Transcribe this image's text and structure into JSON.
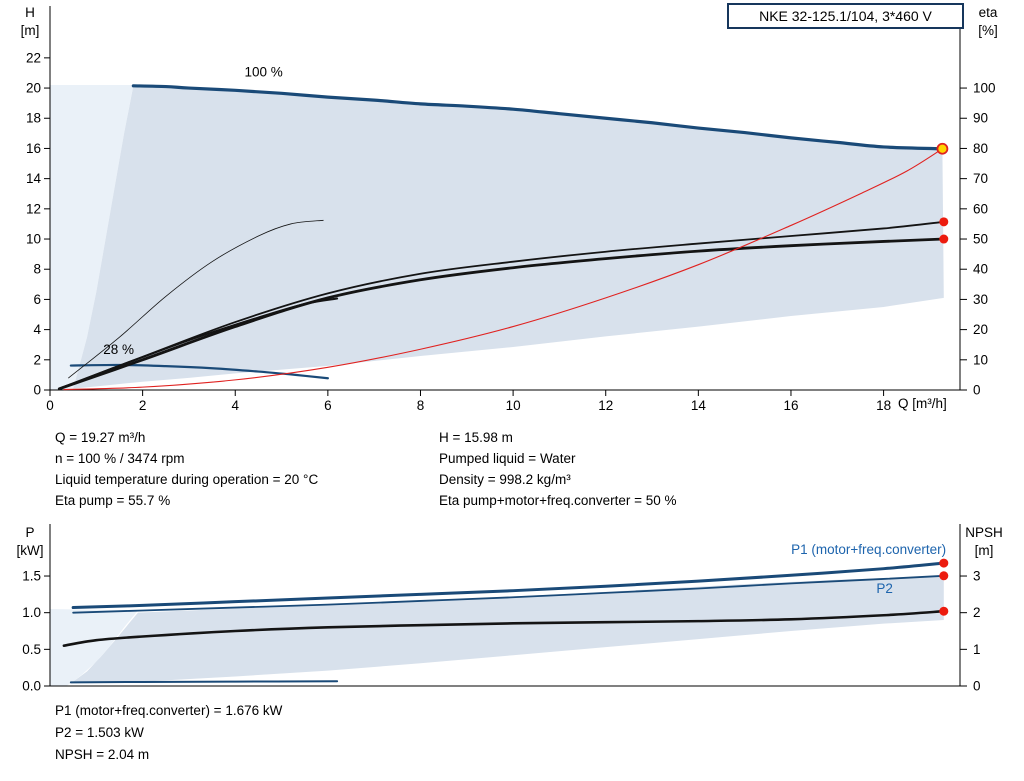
{
  "title_box": {
    "label": "NKE 32-125.1/104, 3*460 V"
  },
  "info_top": {
    "col1": [
      "Q = 19.27 m³/h",
      "n = 100 % / 3474 rpm",
      "Liquid temperature during operation = 20 °C",
      "Eta pump = 55.7 %"
    ],
    "col2": [
      "H = 15.98 m",
      "Pumped liquid = Water",
      "Density = 998.2 kg/m³",
      "Eta pump+motor+freq.converter = 50 %"
    ]
  },
  "info_bottom": [
    "P1 (motor+freq.converter) = 1.676 kW",
    "P2 = 1.503 kW",
    "NPSH = 2.04 m"
  ],
  "chart_data": [
    {
      "type": "line",
      "title": "QH performance curve with efficiency",
      "x_axis": {
        "label": "Q [m³/h]",
        "min": 0,
        "max": 19.65,
        "ticks": [
          0,
          2,
          4,
          6,
          8,
          10,
          12,
          14,
          16,
          18
        ],
        "show_tick_labels": true
      },
      "y_left": {
        "name": "H",
        "unit": "[m]",
        "min": 0,
        "max": 25.17,
        "ticks": [
          0,
          2,
          4,
          6,
          8,
          10,
          12,
          14,
          16,
          18,
          20,
          22
        ],
        "decimals": 0
      },
      "y_right": {
        "name": "eta",
        "unit": "[%]",
        "min": 0,
        "max": 125.85,
        "ticks": [
          0,
          10,
          20,
          30,
          40,
          50,
          60,
          70,
          80,
          90,
          100
        ],
        "decimals": 0
      },
      "series": [
        {
          "name": "operating-range-low-flow",
          "axis": "left",
          "fill": true,
          "color": "#eaf1f8",
          "points": [
            [
              0,
              0
            ],
            [
              0,
              20.2
            ],
            [
              1.8,
              20.2
            ],
            [
              1.6,
              17
            ],
            [
              1.4,
              13.5
            ],
            [
              1.2,
              10
            ],
            [
              1.0,
              6.5
            ],
            [
              0.8,
              3.5
            ],
            [
              0.6,
              1.2
            ],
            [
              0.5,
              0.1
            ],
            [
              0.3,
              0
            ]
          ]
        },
        {
          "name": "operating-range",
          "axis": "left",
          "fill": true,
          "color": "#d8e1ec",
          "points": [
            [
              0.5,
              0.1
            ],
            [
              0.6,
              1.2
            ],
            [
              0.8,
              3.5
            ],
            [
              1.0,
              6.5
            ],
            [
              1.2,
              10
            ],
            [
              1.4,
              13.5
            ],
            [
              1.6,
              17
            ],
            [
              1.8,
              20.15
            ],
            [
              2.5,
              20.1
            ],
            [
              3,
              20.0
            ],
            [
              4,
              19.85
            ],
            [
              5,
              19.65
            ],
            [
              6,
              19.4
            ],
            [
              7,
              19.2
            ],
            [
              8,
              18.95
            ],
            [
              9,
              18.8
            ],
            [
              10,
              18.6
            ],
            [
              11,
              18.3
            ],
            [
              12,
              18.0
            ],
            [
              13,
              17.7
            ],
            [
              14,
              17.35
            ],
            [
              15,
              17.05
            ],
            [
              16,
              16.7
            ],
            [
              17,
              16.4
            ],
            [
              18,
              16.1
            ],
            [
              19.27,
              15.98
            ],
            [
              19.3,
              6.1
            ],
            [
              18,
              5.5
            ],
            [
              16,
              4.9
            ],
            [
              14,
              4.2
            ],
            [
              12,
              3.55
            ],
            [
              10,
              2.85
            ],
            [
              8,
              2.25
            ],
            [
              6,
              1.6
            ],
            [
              4,
              1.1
            ],
            [
              3,
              0.8
            ],
            [
              2,
              0.55
            ],
            [
              1.2,
              0.3
            ],
            [
              0.7,
              0.15
            ]
          ]
        },
        {
          "name": "speed-curve-100pct",
          "axis": "left",
          "color": "#1a4a78",
          "width": 3.2,
          "points": [
            [
              1.8,
              20.15
            ],
            [
              2.5,
              20.1
            ],
            [
              3,
              20.0
            ],
            [
              4,
              19.85
            ],
            [
              5,
              19.65
            ],
            [
              6,
              19.4
            ],
            [
              7,
              19.2
            ],
            [
              8,
              18.95
            ],
            [
              9,
              18.8
            ],
            [
              10,
              18.6
            ],
            [
              11,
              18.3
            ],
            [
              12,
              18.0
            ],
            [
              13,
              17.7
            ],
            [
              14,
              17.35
            ],
            [
              15,
              17.05
            ],
            [
              16,
              16.7
            ],
            [
              17,
              16.4
            ],
            [
              18,
              16.1
            ],
            [
              19.27,
              15.98
            ]
          ]
        },
        {
          "name": "speed-curve-28pct",
          "axis": "left",
          "color": "#1a4a78",
          "width": 2.2,
          "points": [
            [
              0.45,
              1.62
            ],
            [
              1.5,
              1.66
            ],
            [
              2.5,
              1.58
            ],
            [
              3.5,
              1.44
            ],
            [
              4.5,
              1.22
            ],
            [
              5.3,
              1.0
            ],
            [
              6.0,
              0.78
            ]
          ]
        },
        {
          "name": "eta-pump-curve",
          "axis": "right",
          "color": "#141414",
          "width": 1.8,
          "points": [
            [
              0.2,
              0.5
            ],
            [
              2,
              11
            ],
            [
              4,
              22.5
            ],
            [
              6,
              32
            ],
            [
              8,
              38.5
            ],
            [
              10,
              42.5
            ],
            [
              12,
              45.8
            ],
            [
              14,
              48.5
            ],
            [
              16,
              51
            ],
            [
              18,
              53.5
            ],
            [
              19.3,
              55.7
            ]
          ]
        },
        {
          "name": "eta-total-curve",
          "axis": "right",
          "color": "#141414",
          "width": 2.8,
          "points": [
            [
              0.2,
              0.4
            ],
            [
              2,
              10
            ],
            [
              4,
              21
            ],
            [
              6,
              30.5
            ],
            [
              8,
              36.5
            ],
            [
              10,
              40.5
            ],
            [
              12,
              43.5
            ],
            [
              14,
              46
            ],
            [
              16,
              47.8
            ],
            [
              18,
              49.2
            ],
            [
              19.3,
              50
            ]
          ]
        },
        {
          "name": "eta-partload-thin-curve",
          "axis": "right",
          "color": "#141414",
          "width": 0.8,
          "points": [
            [
              0.4,
              4
            ],
            [
              1.5,
              17.5
            ],
            [
              2.5,
              31
            ],
            [
              3.5,
              42.5
            ],
            [
              4.5,
              51
            ],
            [
              5.2,
              55
            ],
            [
              5.9,
              56.2
            ]
          ]
        },
        {
          "name": "eta-partload-curve",
          "axis": "right",
          "color": "#141414",
          "width": 2.0,
          "points": [
            [
              0.4,
              1.5
            ],
            [
              1.5,
              8
            ],
            [
              3,
              16.5
            ],
            [
              4.5,
              24
            ],
            [
              5.5,
              28.5
            ],
            [
              6.2,
              30.3
            ]
          ]
        },
        {
          "name": "control-curve",
          "axis": "left",
          "color": "#e02220",
          "width": 1.1,
          "points": [
            [
              0.3,
              0.03
            ],
            [
              2,
              0.19
            ],
            [
              4,
              0.67
            ],
            [
              6,
              1.5
            ],
            [
              8,
              2.7
            ],
            [
              10,
              4.2
            ],
            [
              12,
              6.1
            ],
            [
              14,
              8.3
            ],
            [
              16,
              10.9
            ],
            [
              17.5,
              13.0
            ],
            [
              18.5,
              14.5
            ],
            [
              19.27,
              15.98
            ]
          ]
        }
      ],
      "markers": [
        {
          "name": "duty-point",
          "x": 19.27,
          "y": 15.98,
          "axis": "left",
          "fill": "#ffd400",
          "stroke": "#e02220",
          "r": 5
        },
        {
          "name": "eta-pump-point",
          "x": 19.3,
          "y": 55.7,
          "axis": "right",
          "fill": "#ec1c0f",
          "r": 4.5
        },
        {
          "name": "eta-total-point",
          "x": 19.3,
          "y": 50,
          "axis": "right",
          "fill": "#ec1c0f",
          "r": 4.5
        }
      ],
      "annotations": [
        {
          "name": "speed-100-label",
          "text": "100 %",
          "x": 4.2,
          "y": 20.75,
          "axis": "left",
          "color": "#000000",
          "anchor": "start"
        },
        {
          "name": "speed-28-label",
          "text": "28 %",
          "x": 1.15,
          "y": 2.4,
          "axis": "left",
          "color": "#000000",
          "anchor": "start"
        }
      ]
    },
    {
      "type": "line",
      "title": "Power and NPSH curves",
      "x_axis": {
        "label": "",
        "min": 0,
        "max": 19.65,
        "ticks": [],
        "show_tick_labels": false
      },
      "y_left": {
        "name": "P",
        "unit": "[kW]",
        "min": 0,
        "max": 2.155,
        "ticks": [
          0,
          0.5,
          1,
          1.5
        ],
        "decimals": 1
      },
      "y_right": {
        "name": "NPSH",
        "unit": "[m]",
        "min": 0,
        "max": 4.31,
        "ticks": [
          0,
          1,
          2,
          3
        ],
        "decimals": 0
      },
      "series": [
        {
          "name": "power-range-low-flow",
          "axis": "left",
          "fill": true,
          "color": "#eaf1f8",
          "points": [
            [
              0,
              0
            ],
            [
              0,
              1.05
            ],
            [
              1.9,
              1.03
            ],
            [
              1.6,
              0.8
            ],
            [
              1.3,
              0.55
            ],
            [
              1.0,
              0.33
            ],
            [
              0.7,
              0.16
            ],
            [
              0.5,
              0.06
            ],
            [
              0.35,
              0
            ]
          ]
        },
        {
          "name": "power-range",
          "axis": "left",
          "fill": true,
          "color": "#d8e1ec",
          "points": [
            [
              0.5,
              0.06
            ],
            [
              0.8,
              0.2
            ],
            [
              1.1,
              0.4
            ],
            [
              1.4,
              0.62
            ],
            [
              1.7,
              0.85
            ],
            [
              1.9,
              1.0
            ],
            [
              3,
              1.03
            ],
            [
              5,
              1.08
            ],
            [
              7,
              1.13
            ],
            [
              9,
              1.19
            ],
            [
              11,
              1.25
            ],
            [
              13,
              1.32
            ],
            [
              15,
              1.39
            ],
            [
              17,
              1.45
            ],
            [
              19.3,
              1.5
            ],
            [
              19.3,
              0.9
            ],
            [
              18,
              0.85
            ],
            [
              16,
              0.75
            ],
            [
              14,
              0.64
            ],
            [
              12,
              0.53
            ],
            [
              10,
              0.42
            ],
            [
              8,
              0.31
            ],
            [
              6,
              0.21
            ],
            [
              4,
              0.13
            ],
            [
              2,
              0.06
            ],
            [
              0.9,
              0.04
            ]
          ]
        },
        {
          "name": "p1-curve",
          "axis": "left",
          "color": "#1a4a78",
          "width": 3.0,
          "points": [
            [
              0.5,
              1.07
            ],
            [
              2,
              1.1
            ],
            [
              4,
              1.15
            ],
            [
              6,
              1.2
            ],
            [
              8,
              1.25
            ],
            [
              10,
              1.3
            ],
            [
              12,
              1.36
            ],
            [
              14,
              1.43
            ],
            [
              16,
              1.51
            ],
            [
              18,
              1.6
            ],
            [
              19.3,
              1.676
            ]
          ]
        },
        {
          "name": "p2-curve",
          "axis": "left",
          "color": "#1a4a78",
          "width": 1.8,
          "points": [
            [
              0.5,
              1.0
            ],
            [
              2,
              1.03
            ],
            [
              4,
              1.07
            ],
            [
              6,
              1.11
            ],
            [
              8,
              1.16
            ],
            [
              10,
              1.21
            ],
            [
              12,
              1.27
            ],
            [
              14,
              1.33
            ],
            [
              16,
              1.4
            ],
            [
              18,
              1.46
            ],
            [
              19.3,
              1.503
            ]
          ]
        },
        {
          "name": "p-min-speed-curve",
          "axis": "left",
          "color": "#1a4a78",
          "width": 2.0,
          "points": [
            [
              0.45,
              0.05
            ],
            [
              2,
              0.055
            ],
            [
              4,
              0.06
            ],
            [
              6.2,
              0.065
            ]
          ]
        },
        {
          "name": "npsh-curve",
          "axis": "right",
          "color": "#141414",
          "width": 2.6,
          "points": [
            [
              0.3,
              1.1
            ],
            [
              1,
              1.25
            ],
            [
              2,
              1.35
            ],
            [
              4,
              1.5
            ],
            [
              6,
              1.6
            ],
            [
              8,
              1.66
            ],
            [
              10,
              1.71
            ],
            [
              12,
              1.74
            ],
            [
              14,
              1.77
            ],
            [
              16,
              1.82
            ],
            [
              18,
              1.93
            ],
            [
              19.3,
              2.04
            ]
          ]
        }
      ],
      "markers": [
        {
          "name": "p1-point",
          "x": 19.3,
          "y": 1.676,
          "axis": "left",
          "fill": "#ec1c0f",
          "r": 4.5
        },
        {
          "name": "p2-point",
          "x": 19.3,
          "y": 1.503,
          "axis": "left",
          "fill": "#ec1c0f",
          "r": 4.5
        },
        {
          "name": "npsh-point",
          "x": 19.3,
          "y": 2.04,
          "axis": "right",
          "fill": "#ec1c0f",
          "r": 4.5
        }
      ],
      "annotations": [
        {
          "name": "p1-label",
          "text": "P1 (motor+freq.converter)",
          "x": 19.35,
          "y": 1.8,
          "axis": "left",
          "color": "#1d64ad",
          "anchor": "end"
        },
        {
          "name": "p2-label",
          "text": "P2",
          "x": 18.2,
          "y": 1.27,
          "axis": "left",
          "color": "#1d64ad",
          "anchor": "end"
        }
      ]
    }
  ]
}
